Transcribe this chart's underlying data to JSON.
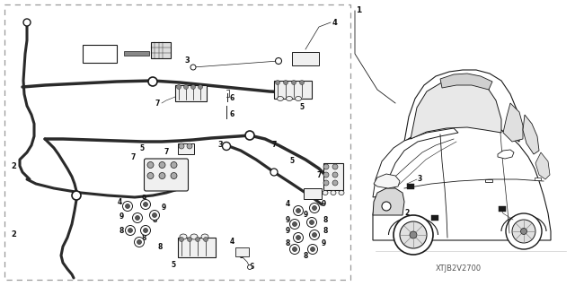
{
  "background_color": "#ffffff",
  "border_color": "#999999",
  "line_color": "#1a1a1a",
  "text_color": "#111111",
  "watermark": "XTJB2V2700",
  "figsize": [
    6.4,
    3.19
  ],
  "dpi": 100,
  "wire_color": "#2a2a2a",
  "part_fill": "#f0f0f0",
  "part_edge": "#1a1a1a"
}
